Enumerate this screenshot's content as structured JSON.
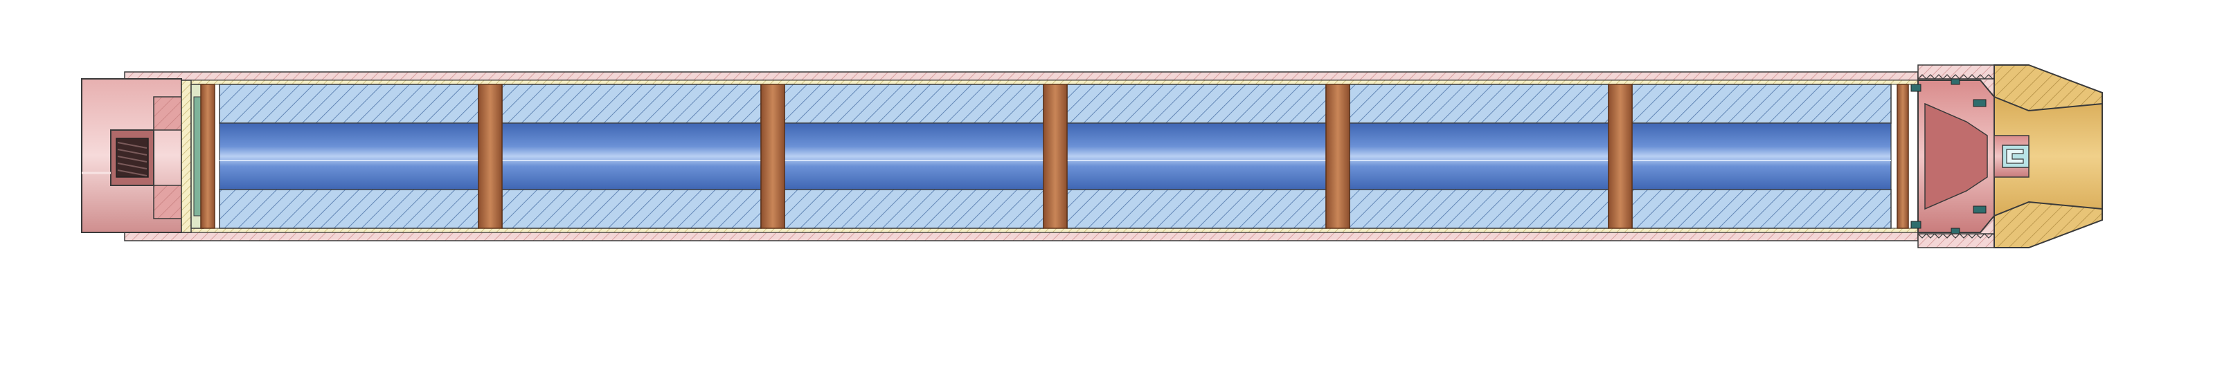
{
  "figure": {
    "kind": "cross-section",
    "background": "#ffffff",
    "spacer_count": 6,
    "grain_count": 6,
    "colors": {
      "outline": "#3a3a3a",
      "casing_fill": "#f3d6d6",
      "casing_hatch": "#d9a0a0",
      "closure_fill": "#e3a3a3",
      "closure_dark": "#c98282",
      "grain_fill": "#b9d4ef",
      "grain_hatch": "#5a7fb0",
      "core_fill": "#5f86d0",
      "core_highlight": "#a9c4ee",
      "spacer_fill": "#b86e48",
      "spacer_edge": "#7a4426",
      "liner_fill": "#f6efc6",
      "liner_hatch": "#c8b878",
      "nozzle_fill": "#e8c477",
      "nozzle_hatch": "#b8944a",
      "insert_fill": "#b8e3e6"
    }
  }
}
